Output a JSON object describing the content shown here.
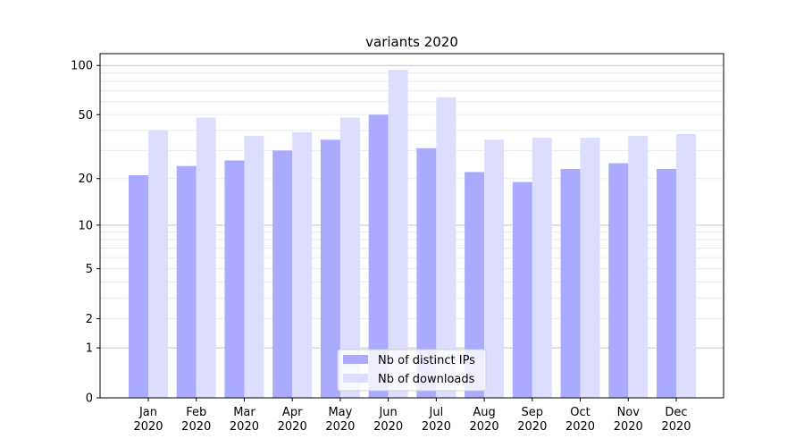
{
  "chart_data": {
    "type": "bar",
    "title": "variants 2020",
    "xlabel": "",
    "ylabel": "",
    "yscale": "log(1+y)",
    "ylim": [
      0,
      118
    ],
    "yticks": [
      0,
      1,
      2,
      5,
      10,
      20,
      50,
      100
    ],
    "grid": true,
    "legend_placement": "lower center",
    "categories": [
      "Jan\n2020",
      "Feb\n2020",
      "Mar\n2020",
      "Apr\n2020",
      "May\n2020",
      "Jun\n2020",
      "Jul\n2020",
      "Aug\n2020",
      "Sep\n2020",
      "Oct\n2020",
      "Nov\n2020",
      "Dec\n2020"
    ],
    "series": [
      {
        "name": "Nb of distinct IPs",
        "color": "#aaaaff",
        "values": [
          21,
          24,
          26,
          30,
          35,
          50,
          31,
          22,
          19,
          23,
          25,
          23
        ]
      },
      {
        "name": "Nb of downloads",
        "color": "#ddddff",
        "values": [
          40,
          48,
          37,
          39,
          48,
          94,
          64,
          35,
          36,
          36,
          37,
          38
        ]
      }
    ]
  }
}
